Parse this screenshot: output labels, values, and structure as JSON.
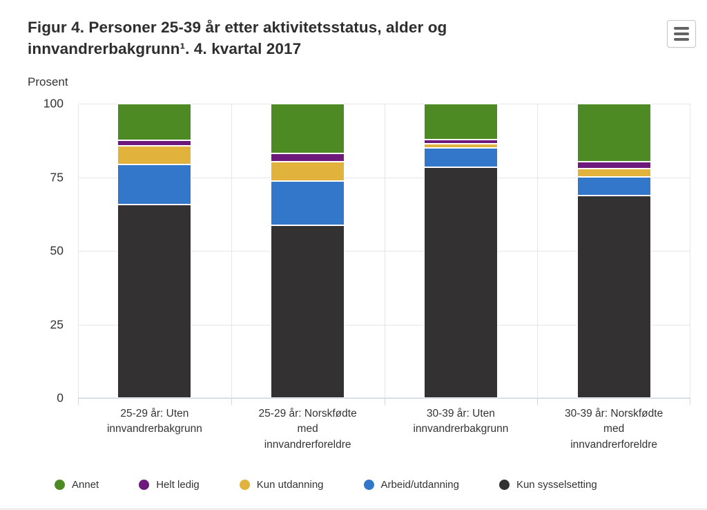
{
  "header": {
    "title": "Figur 4. Personer 25-39 år etter aktivitetsstatus, alder og innvandrerbakgrunn¹. 4. kvartal 2017"
  },
  "chart_data": {
    "type": "bar",
    "stacked": true,
    "title": "Figur 4. Personer 25-39 år etter aktivitetsstatus, alder og innvandrerbakgrunn¹. 4. kvartal 2017",
    "xlabel": "",
    "ylabel": "Prosent",
    "ylim": [
      0,
      100
    ],
    "yticks": [
      0,
      25,
      50,
      75,
      100
    ],
    "grid": true,
    "legend_position": "bottom",
    "categories": [
      "25-29 år: Uten\ninnvandrerbakgrunn",
      "25-29 år: Norskfødte\nmed\ninnvandrerforeldre",
      "30-39 år: Uten\ninnvandrerbakgrunn",
      "30-39 år: Norskfødte\nmed\ninnvandrerforeldre"
    ],
    "stack_order": "bottom-to-top",
    "series": [
      {
        "name": "Kun sysselsetting",
        "color": "#333132",
        "values": [
          65.7,
          58.8,
          78.3,
          68.9
        ]
      },
      {
        "name": "Arbeid/utdanning",
        "color": "#3377cb",
        "values": [
          13.7,
          15.0,
          6.7,
          6.2
        ]
      },
      {
        "name": "Kun utdanning",
        "color": "#e2b33c",
        "values": [
          6.4,
          6.6,
          1.5,
          2.8
        ]
      },
      {
        "name": "Helt ledig",
        "color": "#6e1a7d",
        "values": [
          1.8,
          2.6,
          1.4,
          2.5
        ]
      },
      {
        "name": "Annet",
        "color": "#4e8a23",
        "values": [
          12.4,
          17.0,
          12.1,
          19.6
        ]
      }
    ],
    "legend_order": [
      "Annet",
      "Helt ledig",
      "Kun utdanning",
      "Arbeid/utdanning",
      "Kun sysselsetting"
    ]
  }
}
